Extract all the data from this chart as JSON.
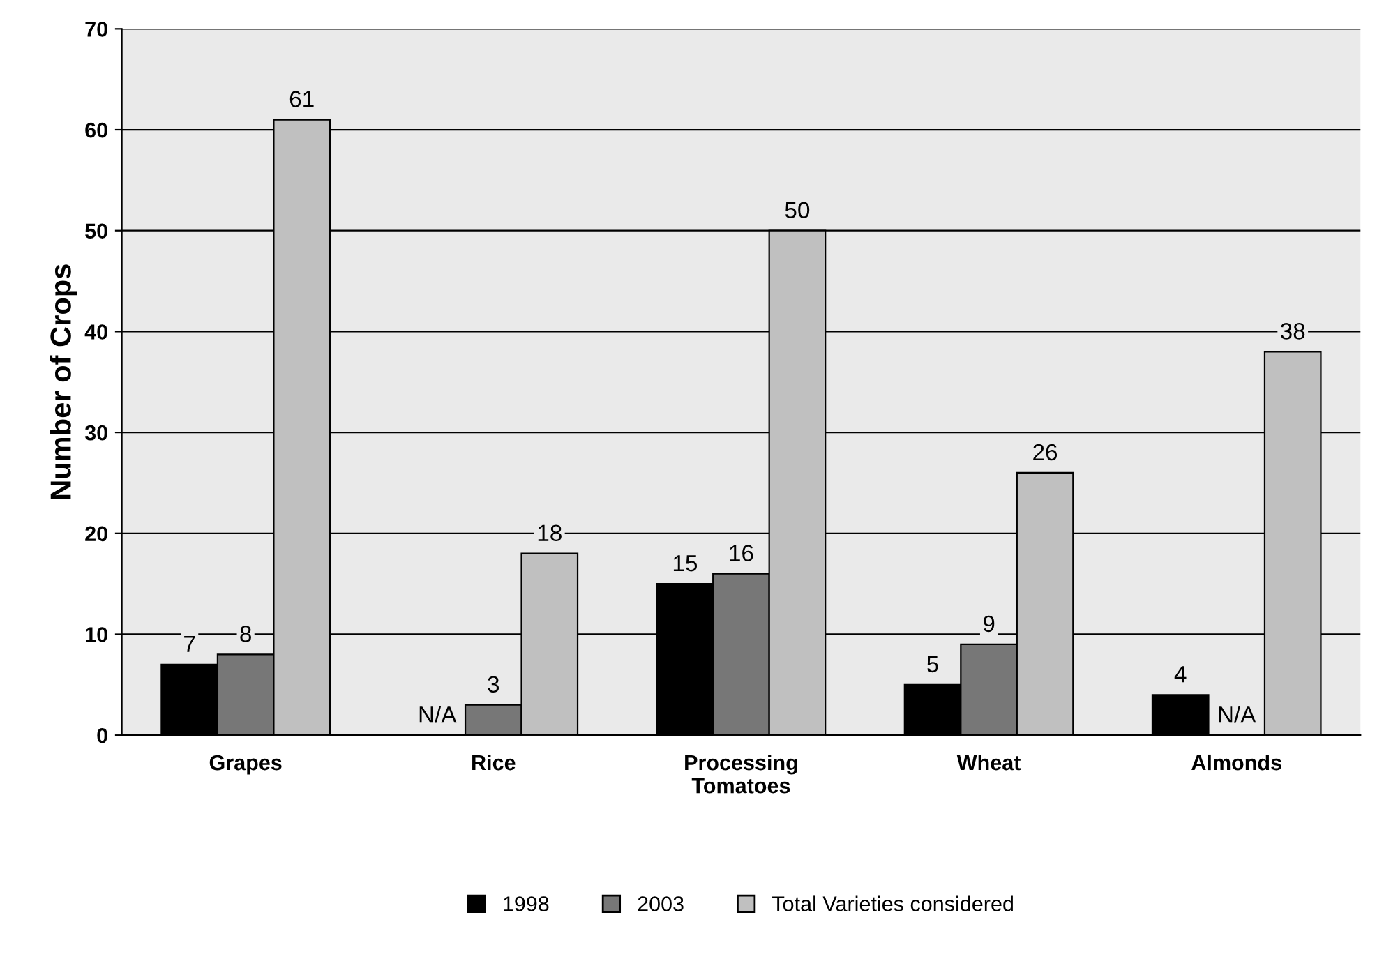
{
  "chart_data": {
    "type": "bar",
    "ylabel": "Number of Crops",
    "categories": [
      "Grapes",
      "Rice",
      "Processing\nTomatoes",
      "Wheat",
      "Almonds"
    ],
    "series": [
      {
        "name": "1998",
        "color": "#000000",
        "values": [
          7,
          null,
          15,
          5,
          4
        ],
        "value_labels": [
          "7",
          "N/A",
          "15",
          "5",
          "4"
        ]
      },
      {
        "name": "2003",
        "color": "#777777",
        "values": [
          8,
          3,
          16,
          9,
          null
        ],
        "value_labels": [
          "8",
          "3",
          "16",
          "9",
          "N/A"
        ]
      },
      {
        "name": "Total Varieties considered",
        "color": "#c0c0c0",
        "values": [
          61,
          18,
          50,
          26,
          38
        ],
        "value_labels": [
          "61",
          "18",
          "50",
          "26",
          "38"
        ]
      }
    ],
    "ylim": [
      0,
      70
    ],
    "yticks": [
      0,
      10,
      20,
      30,
      40,
      50,
      60,
      70
    ],
    "grid": "y",
    "legend": "bottom"
  }
}
